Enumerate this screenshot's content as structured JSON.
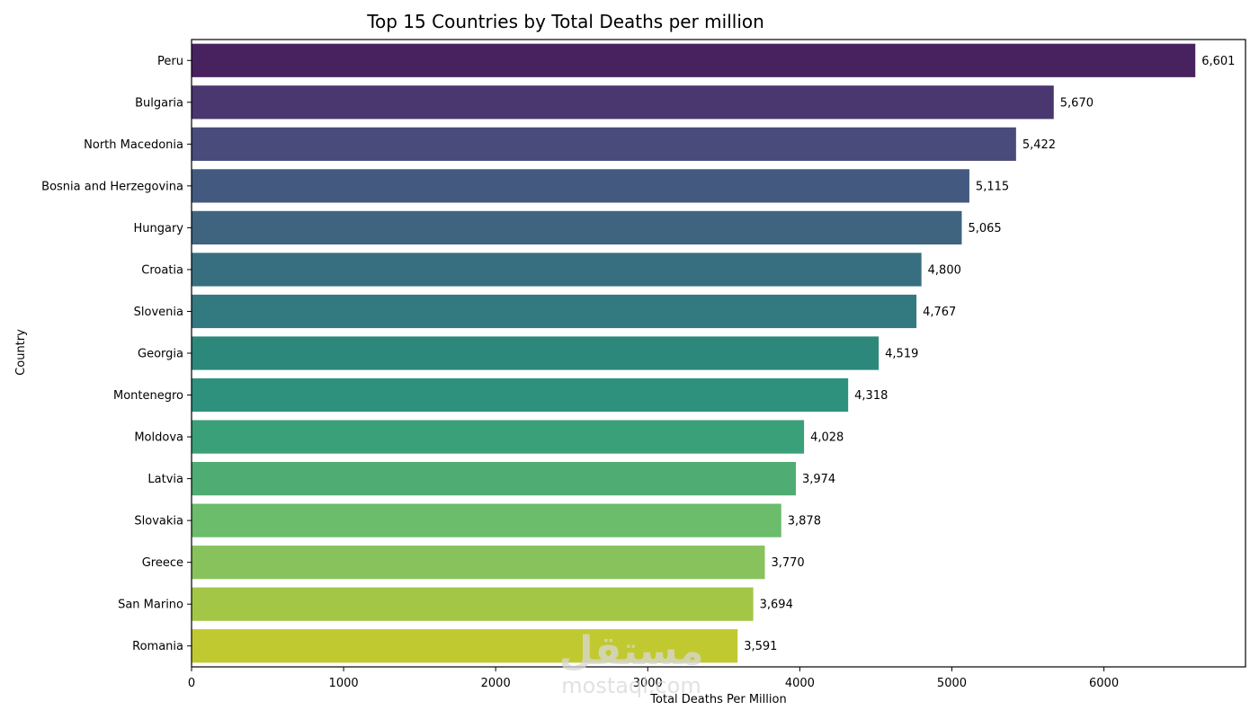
{
  "chart_data": {
    "type": "bar",
    "orientation": "horizontal",
    "title": "Top 15 Countries by Total Deaths per million",
    "xlabel": "Total Deaths Per Million",
    "ylabel": "Country",
    "xlim": [
      0,
      6931
    ],
    "xticks": [
      0,
      1000,
      2000,
      3000,
      4000,
      5000,
      6000
    ],
    "xtick_labels": [
      "0",
      "1000",
      "2000",
      "3000",
      "4000",
      "5000",
      "6000"
    ],
    "grid": false,
    "legend": "none",
    "categories": [
      "Peru",
      "Bulgaria",
      "North Macedonia",
      "Bosnia and Herzegovina",
      "Hungary",
      "Croatia",
      "Slovenia",
      "Georgia",
      "Montenegro",
      "Moldova",
      "Latvia",
      "Slovakia",
      "Greece",
      "San Marino",
      "Romania"
    ],
    "values": [
      6601,
      5670,
      5422,
      5115,
      5065,
      4800,
      4767,
      4519,
      4318,
      4028,
      3974,
      3878,
      3770,
      3694,
      3591
    ],
    "data_labels": [
      "6,601",
      "5,670",
      "5,422",
      "5,115",
      "5,065",
      "4,800",
      "4,767",
      "4,519",
      "4,318",
      "4,028",
      "3,974",
      "3,878",
      "3,770",
      "3,694",
      "3,591"
    ],
    "colors": [
      "#48225e",
      "#4a376f",
      "#494b7a",
      "#44597f",
      "#3e6480",
      "#386f80",
      "#327980",
      "#2d887c",
      "#2e917d",
      "#3aa07a",
      "#4fac72",
      "#6bbc6b",
      "#88c25c",
      "#a3c647",
      "#c1c930"
    ]
  },
  "watermark": {
    "arabic": "مستقل",
    "latin": "mostaql.com"
  }
}
